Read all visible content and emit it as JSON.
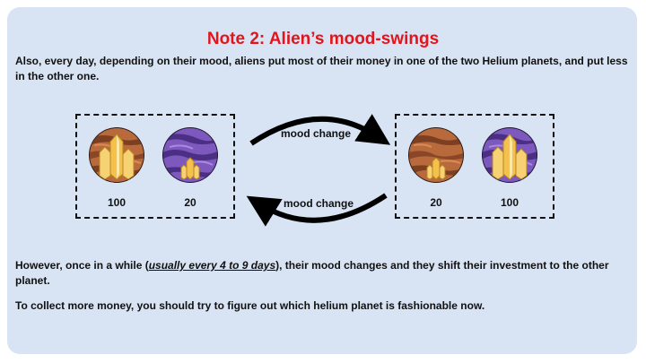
{
  "title": "Note 2: Alien’s mood-swings",
  "intro": "Also, every day, depending on their mood, aliens put most of their money in one of the two Helium planets, and put less in the other one.",
  "left_group": {
    "planet1_amount": "100",
    "planet2_amount": "20"
  },
  "right_group": {
    "planet1_amount": "20",
    "planet2_amount": "100"
  },
  "arrows": {
    "top_label": "mood change",
    "bottom_label": "mood change"
  },
  "paragraph2": {
    "before": "However, once in a while (",
    "emphasis": "usually every 4 to 9 days",
    "after": "), their mood changes and they shift their investment to the other planet."
  },
  "paragraph3": "To collect more money, you should try to figure out which helium planet is fashionable now.",
  "colors": {
    "title": "#e3141b",
    "panel": "#d8e3f3",
    "brown_planet": "#b0653a",
    "purple_planet": "#7a55b8",
    "crystal": "#f2c14a"
  },
  "icons": {
    "planet_brown": "brown-planet-crystal-icon",
    "planet_purple": "purple-planet-crystal-icon"
  }
}
